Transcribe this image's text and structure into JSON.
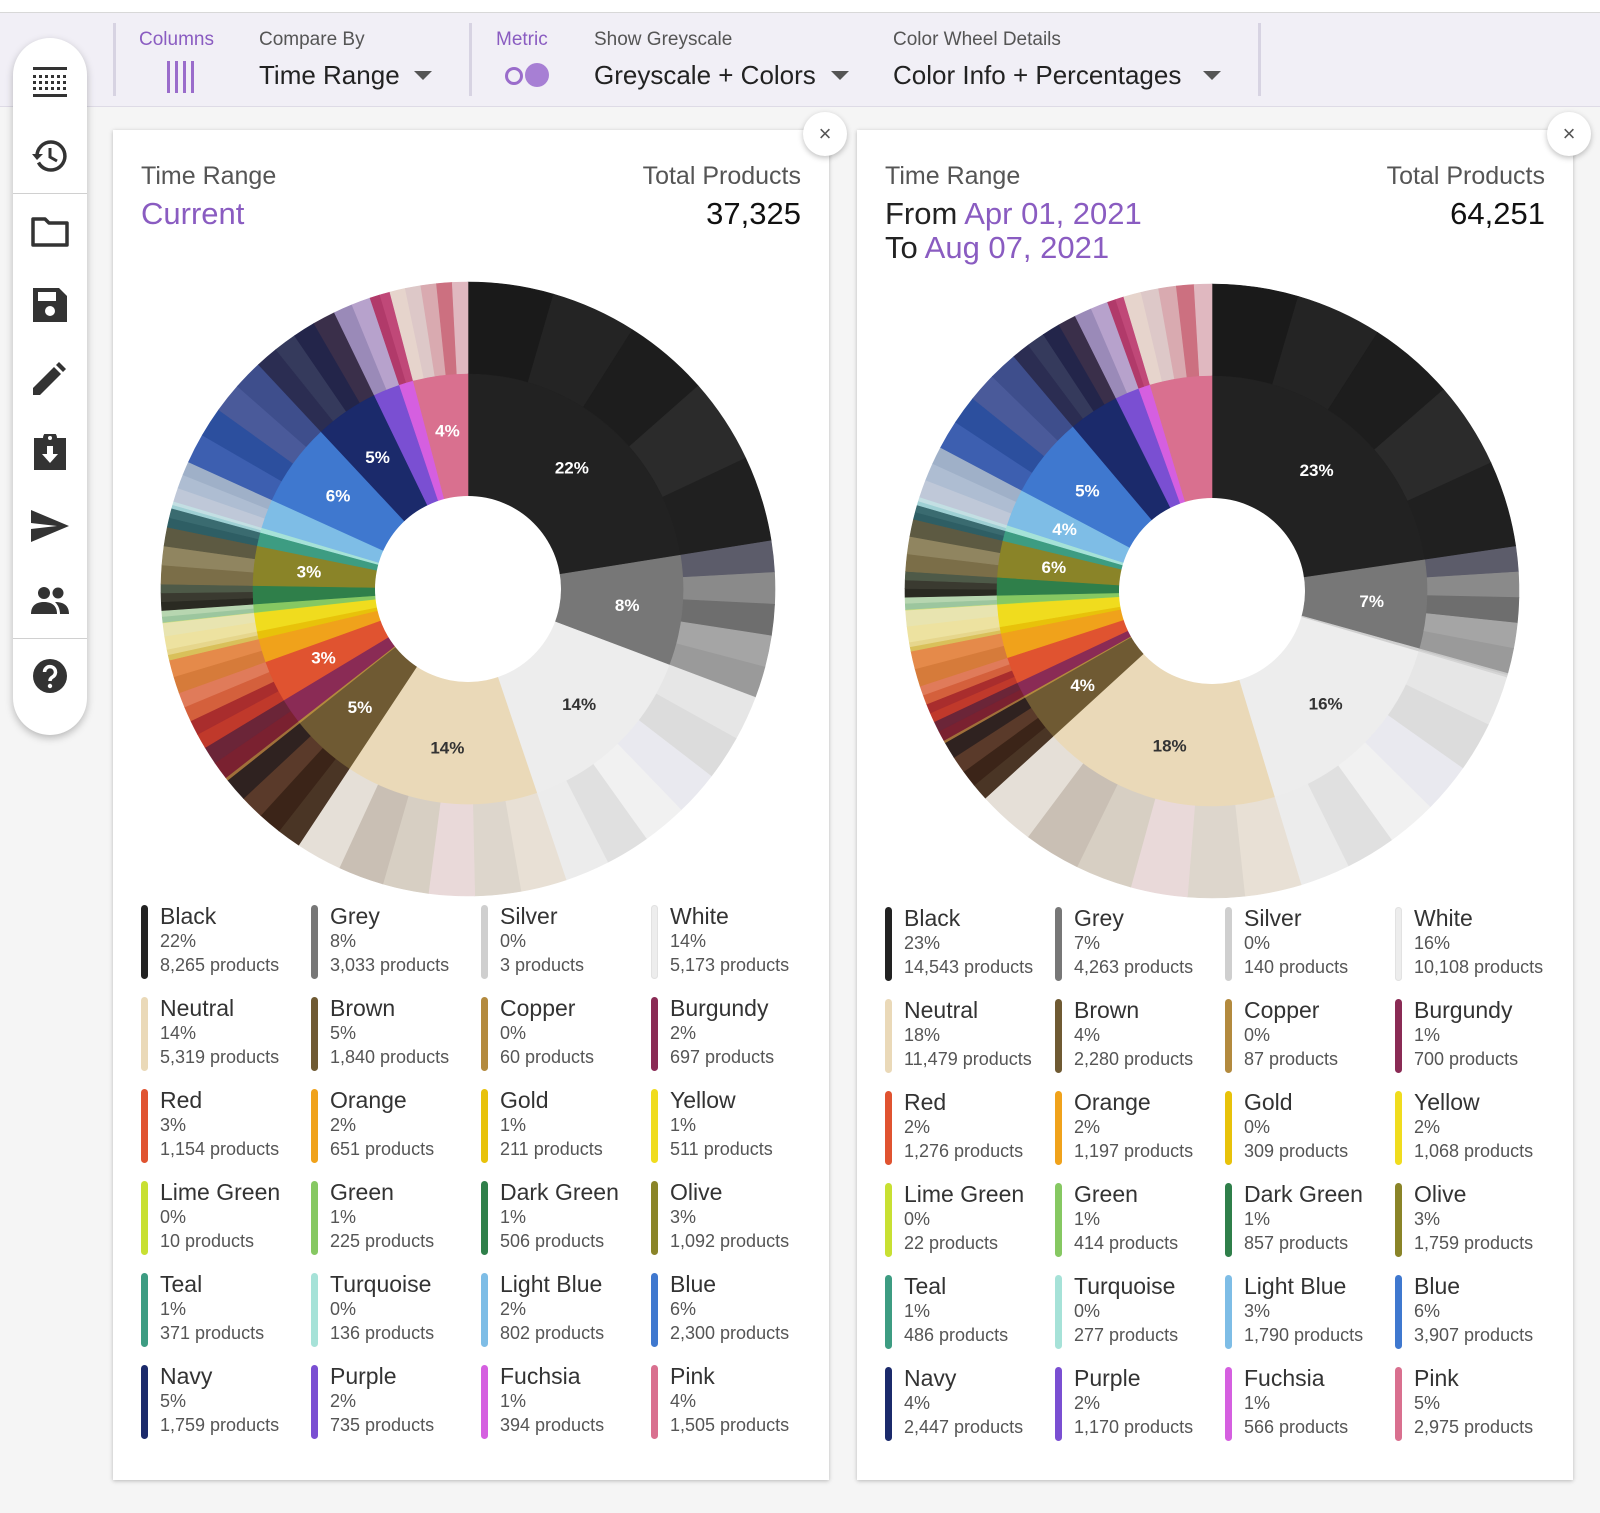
{
  "toolbar": {
    "columns_label": "Columns",
    "compare_label": "Compare By",
    "compare_value": "Time Range",
    "metric_label": "Metric",
    "greyscale_label": "Show Greyscale",
    "greyscale_value": "Greyscale + Colors",
    "wheel_label": "Color Wheel Details",
    "wheel_value": "Color Info + Percentages"
  },
  "sidebar": {
    "items": [
      "grid-view-icon",
      "history-icon",
      "folder-icon",
      "save-icon",
      "edit-icon",
      "download-clipboard-icon",
      "send-icon",
      "people-icon",
      "help-icon"
    ]
  },
  "panels": [
    {
      "close": "×",
      "time_label": "Time Range",
      "time_value": "Current",
      "total_label": "Total Products",
      "total_value": "37,325",
      "wheel_labels": [
        "22%",
        "8%",
        "14%",
        "14%",
        "5%",
        "3%",
        "3%",
        "6%",
        "5%",
        "4%"
      ],
      "legend": [
        {
          "name": "Black",
          "pct": "22%",
          "count": "8,265 products",
          "color": "#222222"
        },
        {
          "name": "Grey",
          "pct": "8%",
          "count": "3,033 products",
          "color": "#777777"
        },
        {
          "name": "Silver",
          "pct": "0%",
          "count": "3 products",
          "color": "#cfcfcf"
        },
        {
          "name": "White",
          "pct": "14%",
          "count": "5,173 products",
          "color": "#ededed"
        },
        {
          "name": "Neutral",
          "pct": "14%",
          "count": "5,319 products",
          "color": "#ead9b8"
        },
        {
          "name": "Brown",
          "pct": "5%",
          "count": "1,840 products",
          "color": "#6f5a33"
        },
        {
          "name": "Copper",
          "pct": "0%",
          "count": "60 products",
          "color": "#b38a3e"
        },
        {
          "name": "Burgundy",
          "pct": "2%",
          "count": "697 products",
          "color": "#8a2b55"
        },
        {
          "name": "Red",
          "pct": "3%",
          "count": "1,154 products",
          "color": "#e05330"
        },
        {
          "name": "Orange",
          "pct": "2%",
          "count": "651 products",
          "color": "#f0a21b"
        },
        {
          "name": "Gold",
          "pct": "1%",
          "count": "211 products",
          "color": "#e8c20a"
        },
        {
          "name": "Yellow",
          "pct": "1%",
          "count": "511 products",
          "color": "#f0dc1e"
        },
        {
          "name": "Lime Green",
          "pct": "0%",
          "count": "10 products",
          "color": "#c8e032"
        },
        {
          "name": "Green",
          "pct": "1%",
          "count": "225 products",
          "color": "#86c862"
        },
        {
          "name": "Dark Green",
          "pct": "1%",
          "count": "506 products",
          "color": "#2f7f4a"
        },
        {
          "name": "Olive",
          "pct": "3%",
          "count": "1,092 products",
          "color": "#8a8428"
        },
        {
          "name": "Teal",
          "pct": "1%",
          "count": "371 products",
          "color": "#3d9c82"
        },
        {
          "name": "Turquoise",
          "pct": "0%",
          "count": "136 products",
          "color": "#a6e2d8"
        },
        {
          "name": "Light Blue",
          "pct": "2%",
          "count": "802 products",
          "color": "#7ebde6"
        },
        {
          "name": "Blue",
          "pct": "6%",
          "count": "2,300 products",
          "color": "#3f78cf"
        },
        {
          "name": "Navy",
          "pct": "5%",
          "count": "1,759 products",
          "color": "#1b2a6b"
        },
        {
          "name": "Purple",
          "pct": "2%",
          "count": "735 products",
          "color": "#7a4fd2"
        },
        {
          "name": "Fuchsia",
          "pct": "1%",
          "count": "394 products",
          "color": "#d55fe0"
        },
        {
          "name": "Pink",
          "pct": "4%",
          "count": "1,505 products",
          "color": "#d9708f"
        }
      ]
    },
    {
      "close": "×",
      "time_label": "Time Range",
      "from_word": "From",
      "from_value": "Apr 01, 2021",
      "to_word": "To",
      "to_value": "Aug 07, 2021",
      "total_label": "Total Products",
      "total_value": "64,251",
      "wheel_labels": [
        "23%",
        "7%",
        "16%",
        "18%",
        "4%",
        "6%",
        "4%",
        "5%"
      ],
      "legend": [
        {
          "name": "Black",
          "pct": "23%",
          "count": "14,543 products",
          "color": "#222222"
        },
        {
          "name": "Grey",
          "pct": "7%",
          "count": "4,263 products",
          "color": "#777777"
        },
        {
          "name": "Silver",
          "pct": "0%",
          "count": "140 products",
          "color": "#cfcfcf"
        },
        {
          "name": "White",
          "pct": "16%",
          "count": "10,108 products",
          "color": "#ededed"
        },
        {
          "name": "Neutral",
          "pct": "18%",
          "count": "11,479 products",
          "color": "#ead9b8"
        },
        {
          "name": "Brown",
          "pct": "4%",
          "count": "2,280 products",
          "color": "#6f5a33"
        },
        {
          "name": "Copper",
          "pct": "0%",
          "count": "87 products",
          "color": "#b38a3e"
        },
        {
          "name": "Burgundy",
          "pct": "1%",
          "count": "700 products",
          "color": "#8a2b55"
        },
        {
          "name": "Red",
          "pct": "2%",
          "count": "1,276 products",
          "color": "#e05330"
        },
        {
          "name": "Orange",
          "pct": "2%",
          "count": "1,197 products",
          "color": "#f0a21b"
        },
        {
          "name": "Gold",
          "pct": "0%",
          "count": "309 products",
          "color": "#e8c20a"
        },
        {
          "name": "Yellow",
          "pct": "2%",
          "count": "1,068 products",
          "color": "#f0dc1e"
        },
        {
          "name": "Lime Green",
          "pct": "0%",
          "count": "22 products",
          "color": "#c8e032"
        },
        {
          "name": "Green",
          "pct": "1%",
          "count": "414 products",
          "color": "#86c862"
        },
        {
          "name": "Dark Green",
          "pct": "1%",
          "count": "857 products",
          "color": "#2f7f4a"
        },
        {
          "name": "Olive",
          "pct": "3%",
          "count": "1,759 products",
          "color": "#8a8428"
        },
        {
          "name": "Teal",
          "pct": "1%",
          "count": "486 products",
          "color": "#3d9c82"
        },
        {
          "name": "Turquoise",
          "pct": "0%",
          "count": "277 products",
          "color": "#a6e2d8"
        },
        {
          "name": "Light Blue",
          "pct": "3%",
          "count": "1,790 products",
          "color": "#7ebde6"
        },
        {
          "name": "Blue",
          "pct": "6%",
          "count": "3,907 products",
          "color": "#3f78cf"
        },
        {
          "name": "Navy",
          "pct": "4%",
          "count": "2,447 products",
          "color": "#1b2a6b"
        },
        {
          "name": "Purple",
          "pct": "2%",
          "count": "1,170 products",
          "color": "#7a4fd2"
        },
        {
          "name": "Fuchsia",
          "pct": "1%",
          "count": "566 products",
          "color": "#d55fe0"
        },
        {
          "name": "Pink",
          "pct": "5%",
          "count": "2,975 products",
          "color": "#d9708f"
        }
      ]
    }
  ]
}
